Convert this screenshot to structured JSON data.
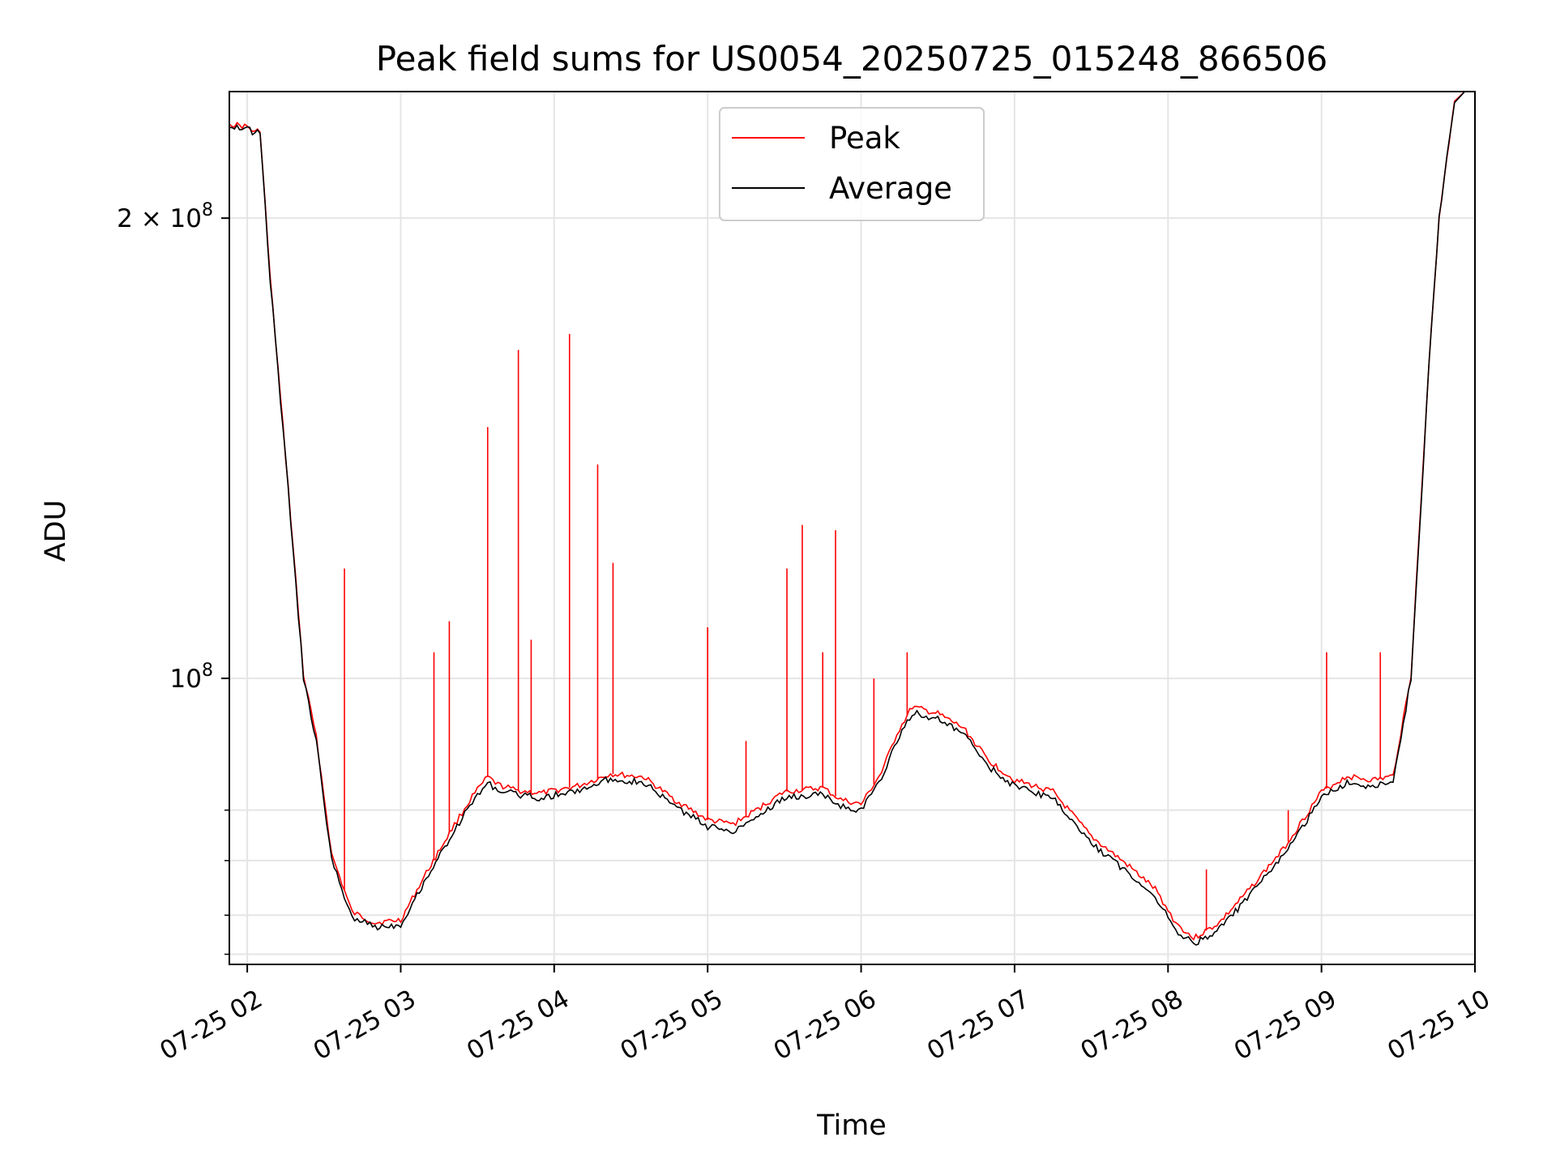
{
  "chart_data": {
    "type": "line",
    "title": "Peak field sums for US0054_20250725_015248_866506",
    "xlabel": "Time",
    "ylabel": "ADU",
    "y_scale": "log",
    "ylim": [
      65000000,
      242000000
    ],
    "xlim": [
      "2025-07-25 01:53",
      "2025-07-25 10:00"
    ],
    "grid": true,
    "legend_placement": "upper center",
    "x_ticks": [
      "2025-07-25 02:00",
      "2025-07-25 03:00",
      "2025-07-25 04:00",
      "2025-07-25 05:00",
      "2025-07-25 06:00",
      "2025-07-25 07:00",
      "2025-07-25 08:00",
      "2025-07-25 09:00",
      "2025-07-25 10:00"
    ],
    "x_tick_labels": [
      "07-25 02",
      "07-25 03",
      "07-25 04",
      "07-25 05",
      "07-25 06",
      "07-25 07",
      "07-25 08",
      "07-25 09",
      "07-25 10"
    ],
    "y_major_ticks": [
      100000000,
      200000000
    ],
    "y_major_labels": [
      {
        "base": "10",
        "exp": "8"
      },
      {
        "base": "2 × 10",
        "exp": "8"
      }
    ],
    "y_minor_ticks": [
      66000000,
      70000000,
      76000000,
      82000000
    ],
    "series": [
      {
        "name": "Average",
        "color": "#000000",
        "x": [
          "2025-07-25 01:53",
          "2025-07-25 02:00",
          "2025-07-25 02:03",
          "2025-07-25 02:05",
          "2025-07-25 02:09",
          "2025-07-25 02:16",
          "2025-07-25 02:22",
          "2025-07-25 02:27",
          "2025-07-25 02:33",
          "2025-07-25 02:41",
          "2025-07-25 02:50",
          "2025-07-25 03:00",
          "2025-07-25 03:10",
          "2025-07-25 03:20",
          "2025-07-25 03:28",
          "2025-07-25 03:34",
          "2025-07-25 03:38",
          "2025-07-25 03:45",
          "2025-07-25 03:55",
          "2025-07-25 04:10",
          "2025-07-25 04:22",
          "2025-07-25 04:35",
          "2025-07-25 04:47",
          "2025-07-25 05:00",
          "2025-07-25 05:10",
          "2025-07-25 05:18",
          "2025-07-25 05:30",
          "2025-07-25 05:45",
          "2025-07-25 05:52",
          "2025-07-25 06:00",
          "2025-07-25 06:08",
          "2025-07-25 06:14",
          "2025-07-25 06:20",
          "2025-07-25 06:30",
          "2025-07-25 06:40",
          "2025-07-25 06:50",
          "2025-07-25 07:00",
          "2025-07-25 07:15",
          "2025-07-25 07:30",
          "2025-07-25 07:45",
          "2025-07-25 07:55",
          "2025-07-25 08:03",
          "2025-07-25 08:10",
          "2025-07-25 08:20",
          "2025-07-25 08:30",
          "2025-07-25 08:45",
          "2025-07-25 09:00",
          "2025-07-25 09:10",
          "2025-07-25 09:20",
          "2025-07-25 09:28",
          "2025-07-25 09:35",
          "2025-07-25 09:42",
          "2025-07-25 09:46",
          "2025-07-25 09:50",
          "2025-07-25 09:52",
          "2025-07-25 09:56"
        ],
        "y": [
          230000000,
          229000000,
          227000000,
          228000000,
          182000000,
          133000000,
          100000000,
          91000000,
          76000000,
          69800000,
          68800000,
          69000000,
          74000000,
          79000000,
          83000000,
          85500000,
          84500000,
          84000000,
          83500000,
          84500000,
          86000000,
          85500000,
          82500000,
          80000000,
          79500000,
          81000000,
          83500000,
          84000000,
          82500000,
          82000000,
          86000000,
          91000000,
          95000000,
          94000000,
          92000000,
          87500000,
          85000000,
          83500000,
          78000000,
          74500000,
          72000000,
          68500000,
          67000000,
          68500000,
          71500000,
          76500000,
          83500000,
          85500000,
          85000000,
          85500000,
          100000000,
          160000000,
          200000000,
          225000000,
          238000000,
          242000000
        ]
      },
      {
        "name": "Peak",
        "color": "#ff0000",
        "x": [
          "2025-07-25 01:53",
          "2025-07-25 02:00",
          "2025-07-25 02:03",
          "2025-07-25 02:05",
          "2025-07-25 02:09",
          "2025-07-25 02:16",
          "2025-07-25 02:22",
          "2025-07-25 02:27",
          "2025-07-25 02:33",
          "2025-07-25 02:41",
          "2025-07-25 02:50",
          "2025-07-25 03:00",
          "2025-07-25 03:10",
          "2025-07-25 03:20",
          "2025-07-25 03:28",
          "2025-07-25 03:34",
          "2025-07-25 03:38",
          "2025-07-25 03:45",
          "2025-07-25 03:55",
          "2025-07-25 04:10",
          "2025-07-25 04:22",
          "2025-07-25 04:35",
          "2025-07-25 04:47",
          "2025-07-25 05:00",
          "2025-07-25 05:10",
          "2025-07-25 05:18",
          "2025-07-25 05:30",
          "2025-07-25 05:45",
          "2025-07-25 05:52",
          "2025-07-25 06:00",
          "2025-07-25 06:08",
          "2025-07-25 06:14",
          "2025-07-25 06:20",
          "2025-07-25 06:30",
          "2025-07-25 06:40",
          "2025-07-25 06:50",
          "2025-07-25 07:00",
          "2025-07-25 07:15",
          "2025-07-25 07:30",
          "2025-07-25 07:45",
          "2025-07-25 07:55",
          "2025-07-25 08:03",
          "2025-07-25 08:10",
          "2025-07-25 08:20",
          "2025-07-25 08:30",
          "2025-07-25 08:45",
          "2025-07-25 09:00",
          "2025-07-25 09:10",
          "2025-07-25 09:20",
          "2025-07-25 09:28",
          "2025-07-25 09:35",
          "2025-07-25 09:42",
          "2025-07-25 09:46",
          "2025-07-25 09:50",
          "2025-07-25 09:52",
          "2025-07-25 09:56"
        ],
        "y": [
          230500000,
          229500000,
          227500000,
          228500000,
          182500000,
          133500000,
          100500000,
          91500000,
          76700000,
          70300000,
          69200000,
          69500000,
          74600000,
          79700000,
          83700000,
          86200000,
          85200000,
          84500000,
          84100000,
          85100000,
          86600000,
          86200000,
          83300000,
          80800000,
          80300000,
          81800000,
          84300000,
          84800000,
          83300000,
          82700000,
          86800000,
          92000000,
          95800000,
          94800000,
          92800000,
          88300000,
          85800000,
          84300000,
          78800000,
          75300000,
          72800000,
          69200000,
          67600000,
          69200000,
          72200000,
          77300000,
          84300000,
          86300000,
          85800000,
          86300000,
          100500000,
          160500000,
          200500000,
          225500000,
          238500000,
          242000000
        ],
        "spikes": [
          {
            "x": "2025-07-25 02:38",
            "y": 118000000
          },
          {
            "x": "2025-07-25 03:13",
            "y": 104000000
          },
          {
            "x": "2025-07-25 03:19",
            "y": 109000000
          },
          {
            "x": "2025-07-25 03:34",
            "y": 146000000
          },
          {
            "x": "2025-07-25 03:46",
            "y": 164000000
          },
          {
            "x": "2025-07-25 03:51",
            "y": 106000000
          },
          {
            "x": "2025-07-25 04:06",
            "y": 168000000
          },
          {
            "x": "2025-07-25 04:17",
            "y": 138000000
          },
          {
            "x": "2025-07-25 04:23",
            "y": 119000000
          },
          {
            "x": "2025-07-25 05:00",
            "y": 108000000
          },
          {
            "x": "2025-07-25 05:15",
            "y": 91000000
          },
          {
            "x": "2025-07-25 05:31",
            "y": 118000000
          },
          {
            "x": "2025-07-25 05:37",
            "y": 126000000
          },
          {
            "x": "2025-07-25 05:45",
            "y": 104000000
          },
          {
            "x": "2025-07-25 05:50",
            "y": 125000000
          },
          {
            "x": "2025-07-25 06:05",
            "y": 100000000
          },
          {
            "x": "2025-07-25 06:18",
            "y": 104000000
          },
          {
            "x": "2025-07-25 09:02",
            "y": 104000000
          },
          {
            "x": "2025-07-25 09:23",
            "y": 104000000
          },
          {
            "x": "2025-07-25 08:15",
            "y": 75000000
          },
          {
            "x": "2025-07-25 08:47",
            "y": 82000000
          }
        ]
      }
    ]
  }
}
